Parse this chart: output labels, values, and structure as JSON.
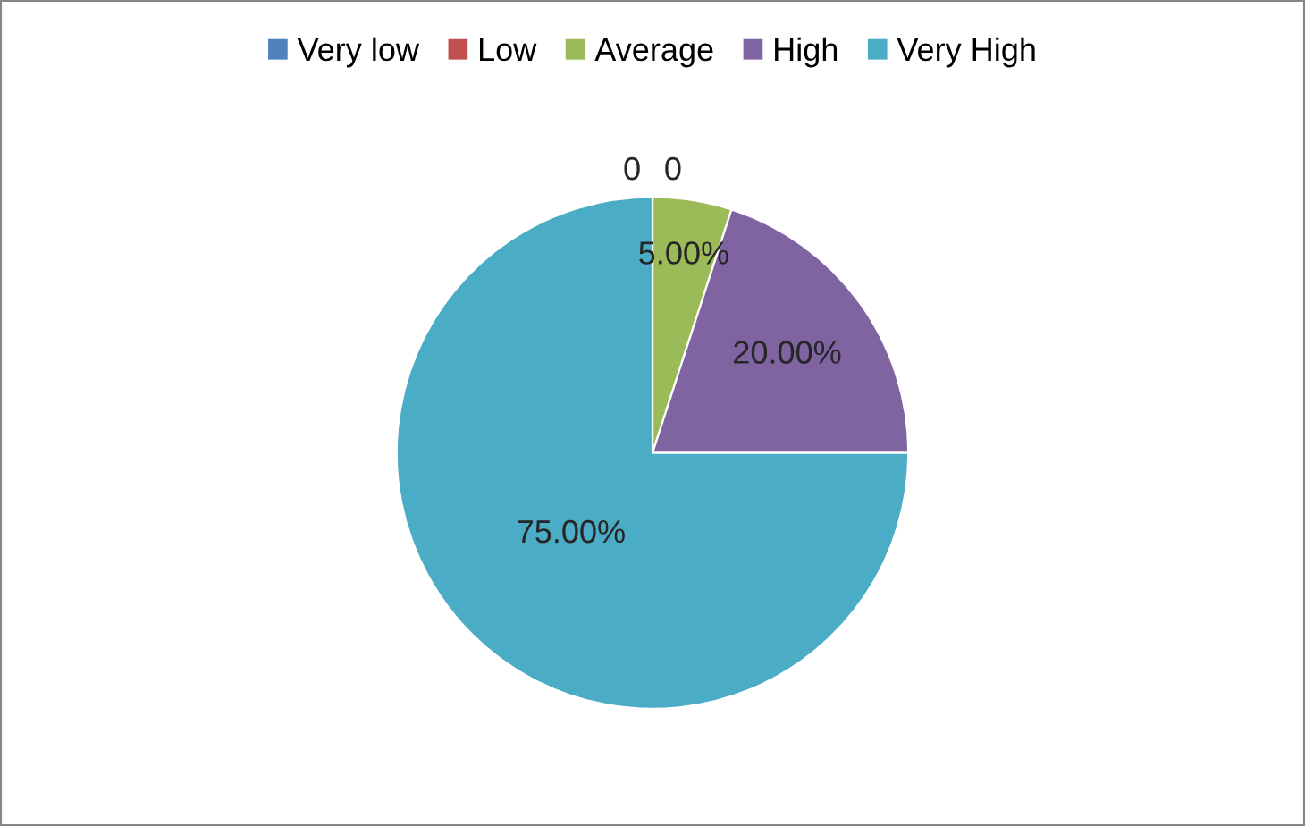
{
  "chart_data": {
    "type": "pie",
    "categories": [
      "Very low",
      "Low",
      "Average",
      "High",
      "Very High"
    ],
    "values": [
      0,
      0,
      5,
      20,
      75
    ],
    "colors": [
      "#4f81bd",
      "#c0504d",
      "#9bbb59",
      "#8064a2",
      "#4bacc6"
    ],
    "value_labels": [
      "0",
      "0",
      "5.00%",
      "20.00%",
      "75.00%"
    ],
    "legend": "top"
  }
}
